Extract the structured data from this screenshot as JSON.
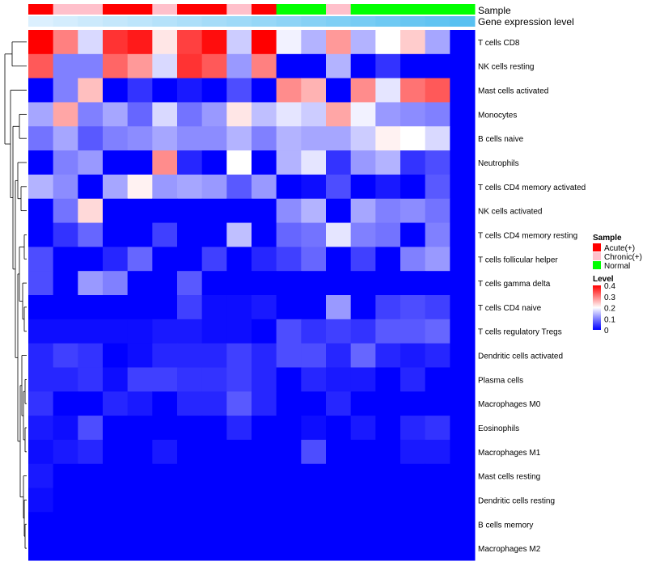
{
  "chart_data": {
    "type": "heatmap",
    "title": "",
    "annotation_titles": {
      "sample": "Sample",
      "expression": "Gene expression level"
    },
    "sample_groups": [
      "Acute",
      "Chronic",
      "Chronic",
      "Acute",
      "Acute",
      "Chronic",
      "Acute",
      "Acute",
      "Chronic",
      "Acute",
      "Normal",
      "Normal",
      "Chronic",
      "Normal",
      "Normal",
      "Normal",
      "Normal",
      "Normal"
    ],
    "expression_levels": [
      0.02,
      0.03,
      0.04,
      0.05,
      0.06,
      0.07,
      0.08,
      0.09,
      0.1,
      0.11,
      0.12,
      0.13,
      0.14,
      0.15,
      0.16,
      0.17,
      0.18,
      0.19
    ],
    "rows": [
      "T cells CD8",
      "NK cells resting",
      "Mast cells activated",
      "Monocytes",
      "B cells naive",
      "Neutrophils",
      "T cells CD4 memory activated",
      "NK cells activated",
      "T cells CD4 memory resting",
      "T cells follicular helper",
      "T cells gamma delta",
      "T cells CD4 naive",
      "T cells regulatory  Tregs",
      "Dendritic cells activated",
      "Plasma cells",
      "Macrophages M0",
      "Eosinophils",
      "Macrophages M1",
      "Mast cells resting",
      "Dendritic cells resting",
      "B cells memory",
      "Macrophages M2"
    ],
    "values": [
      [
        0.4,
        0.3,
        0.17,
        0.36,
        0.38,
        0.22,
        0.35,
        0.39,
        0.16,
        0.4,
        0.19,
        0.14,
        0.28,
        0.14,
        0.2,
        0.24,
        0.13,
        0.0
      ],
      [
        0.33,
        0.1,
        0.1,
        0.32,
        0.28,
        0.17,
        0.36,
        0.33,
        0.12,
        0.3,
        0.0,
        0.0,
        0.14,
        0.0,
        0.04,
        0.0,
        0.0,
        0.0
      ],
      [
        0.0,
        0.1,
        0.25,
        0.0,
        0.04,
        0.0,
        0.02,
        0.0,
        0.06,
        0.0,
        0.29,
        0.26,
        0.0,
        0.29,
        0.18,
        0.31,
        0.33,
        0.0
      ],
      [
        0.13,
        0.27,
        0.1,
        0.13,
        0.08,
        0.17,
        0.09,
        0.12,
        0.22,
        0.15,
        0.18,
        0.16,
        0.27,
        0.19,
        0.12,
        0.11,
        0.1,
        0.0
      ],
      [
        0.09,
        0.13,
        0.07,
        0.1,
        0.11,
        0.13,
        0.11,
        0.11,
        0.14,
        0.1,
        0.14,
        0.13,
        0.13,
        0.16,
        0.21,
        0.2,
        0.17,
        0.0
      ],
      [
        0.0,
        0.1,
        0.12,
        0.0,
        0.0,
        0.29,
        0.03,
        0.0,
        0.2,
        0.0,
        0.14,
        0.18,
        0.04,
        0.12,
        0.14,
        0.04,
        0.06,
        0.0
      ],
      [
        0.14,
        0.11,
        0.0,
        0.13,
        0.21,
        0.12,
        0.13,
        0.12,
        0.07,
        0.12,
        0.0,
        0.01,
        0.06,
        0.0,
        0.02,
        0.0,
        0.07,
        0.0
      ],
      [
        0.0,
        0.09,
        0.23,
        0.0,
        0.0,
        0.0,
        0.0,
        0.0,
        0.0,
        0.0,
        0.11,
        0.14,
        0.0,
        0.13,
        0.1,
        0.11,
        0.09,
        0.0
      ],
      [
        0.0,
        0.04,
        0.08,
        0.0,
        0.0,
        0.05,
        0.0,
        0.0,
        0.15,
        0.0,
        0.08,
        0.09,
        0.18,
        0.1,
        0.09,
        0.0,
        0.1,
        0.0
      ],
      [
        0.06,
        0.0,
        0.0,
        0.03,
        0.08,
        0.0,
        0.0,
        0.05,
        0.0,
        0.03,
        0.05,
        0.08,
        0.0,
        0.05,
        0.0,
        0.1,
        0.12,
        0.0
      ],
      [
        0.06,
        0.0,
        0.12,
        0.1,
        0.0,
        0.0,
        0.07,
        0.0,
        0.0,
        0.0,
        0.0,
        0.0,
        0.0,
        0.0,
        0.0,
        0.0,
        0.0,
        0.0
      ],
      [
        0.0,
        0.0,
        0.0,
        0.0,
        0.0,
        0.0,
        0.05,
        0.01,
        0.01,
        0.02,
        0.0,
        0.0,
        0.12,
        0.0,
        0.05,
        0.06,
        0.05,
        0.0
      ],
      [
        0.01,
        0.01,
        0.01,
        0.01,
        0.01,
        0.02,
        0.02,
        0.01,
        0.01,
        0.0,
        0.06,
        0.04,
        0.05,
        0.04,
        0.07,
        0.07,
        0.08,
        0.0
      ],
      [
        0.03,
        0.05,
        0.04,
        0.0,
        0.01,
        0.03,
        0.03,
        0.03,
        0.05,
        0.03,
        0.06,
        0.06,
        0.03,
        0.08,
        0.03,
        0.02,
        0.03,
        0.0
      ],
      [
        0.03,
        0.03,
        0.04,
        0.01,
        0.05,
        0.05,
        0.04,
        0.04,
        0.05,
        0.03,
        0.0,
        0.03,
        0.02,
        0.02,
        0.0,
        0.03,
        0.0,
        0.0
      ],
      [
        0.04,
        0.0,
        0.0,
        0.03,
        0.02,
        0.0,
        0.03,
        0.03,
        0.07,
        0.03,
        0.0,
        0.0,
        0.03,
        0.0,
        0.0,
        0.0,
        0.0,
        0.0
      ],
      [
        0.02,
        0.01,
        0.06,
        0.0,
        0.0,
        0.0,
        0.0,
        0.0,
        0.03,
        0.0,
        0.0,
        0.01,
        0.0,
        0.02,
        0.0,
        0.03,
        0.04,
        0.0
      ],
      [
        0.01,
        0.02,
        0.03,
        0.0,
        0.0,
        0.02,
        0.0,
        0.0,
        0.0,
        0.0,
        0.0,
        0.06,
        0.0,
        0.0,
        0.0,
        0.02,
        0.02,
        0.0
      ],
      [
        0.02,
        0.0,
        0.0,
        0.0,
        0.0,
        0.0,
        0.0,
        0.0,
        0.0,
        0.0,
        0.0,
        0.0,
        0.0,
        0.0,
        0.0,
        0.0,
        0.0,
        0.0
      ],
      [
        0.01,
        0.0,
        0.0,
        0.0,
        0.0,
        0.0,
        0.0,
        0.0,
        0.0,
        0.0,
        0.0,
        0.0,
        0.0,
        0.0,
        0.0,
        0.0,
        0.0,
        0.0
      ],
      [
        0.0,
        0.0,
        0.0,
        0.0,
        0.0,
        0.0,
        0.0,
        0.0,
        0.0,
        0.0,
        0.0,
        0.0,
        0.0,
        0.0,
        0.0,
        0.0,
        0.0,
        0.0
      ],
      [
        0.0,
        0.0,
        0.0,
        0.0,
        0.0,
        0.0,
        0.0,
        0.0,
        0.0,
        0.0,
        0.0,
        0.0,
        0.0,
        0.0,
        0.0,
        0.0,
        0.0,
        0.0
      ]
    ],
    "color_scale": {
      "low": "#0000ff",
      "mid": "#ffffff",
      "high": "#ff0000",
      "min": 0,
      "max": 0.4
    },
    "legend_sample": {
      "title": "Sample",
      "entries": [
        {
          "label": "Acute(+)",
          "color": "#ff0000"
        },
        {
          "label": "Chronic(+)",
          "color": "#ffc0cb"
        },
        {
          "label": "Normal",
          "color": "#00ff00"
        }
      ]
    },
    "legend_level": {
      "title": "Level",
      "ticks": [
        {
          "value": 0.4,
          "label": "0.4"
        },
        {
          "value": 0.3,
          "label": "0.3"
        },
        {
          "value": 0.2,
          "label": "0.2"
        },
        {
          "value": 0.1,
          "label": "0.1"
        },
        {
          "value": 0,
          "label": "0"
        }
      ]
    },
    "row_dendrogram": "hierarchical clustering (left)"
  }
}
